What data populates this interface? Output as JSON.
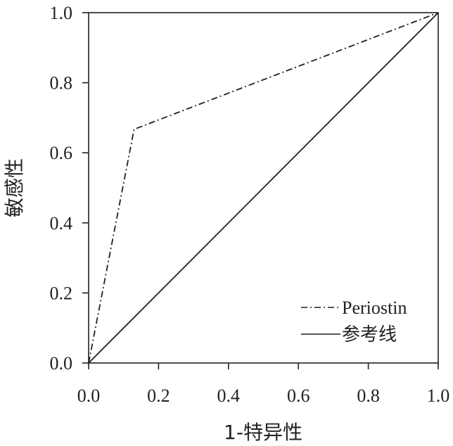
{
  "chart_data": {
    "type": "line",
    "xlabel": "1-特异性",
    "ylabel": "敏感性",
    "xlim": [
      0,
      1
    ],
    "ylim": [
      0,
      1
    ],
    "x_ticks": [
      "0.0",
      "0.2",
      "0.4",
      "0.6",
      "0.8",
      "1.0"
    ],
    "y_ticks": [
      "0.0",
      "0.2",
      "0.4",
      "0.6",
      "0.8",
      "1.0"
    ],
    "grid": false,
    "legend_position": "bottom-right",
    "series": [
      {
        "name": "Periostin",
        "style": "dash-dot",
        "points": [
          [
            0,
            0
          ],
          [
            0.13,
            0.667
          ],
          [
            1,
            1
          ]
        ]
      },
      {
        "name": "参考线",
        "style": "solid",
        "points": [
          [
            0,
            0
          ],
          [
            1,
            1
          ]
        ]
      }
    ]
  }
}
